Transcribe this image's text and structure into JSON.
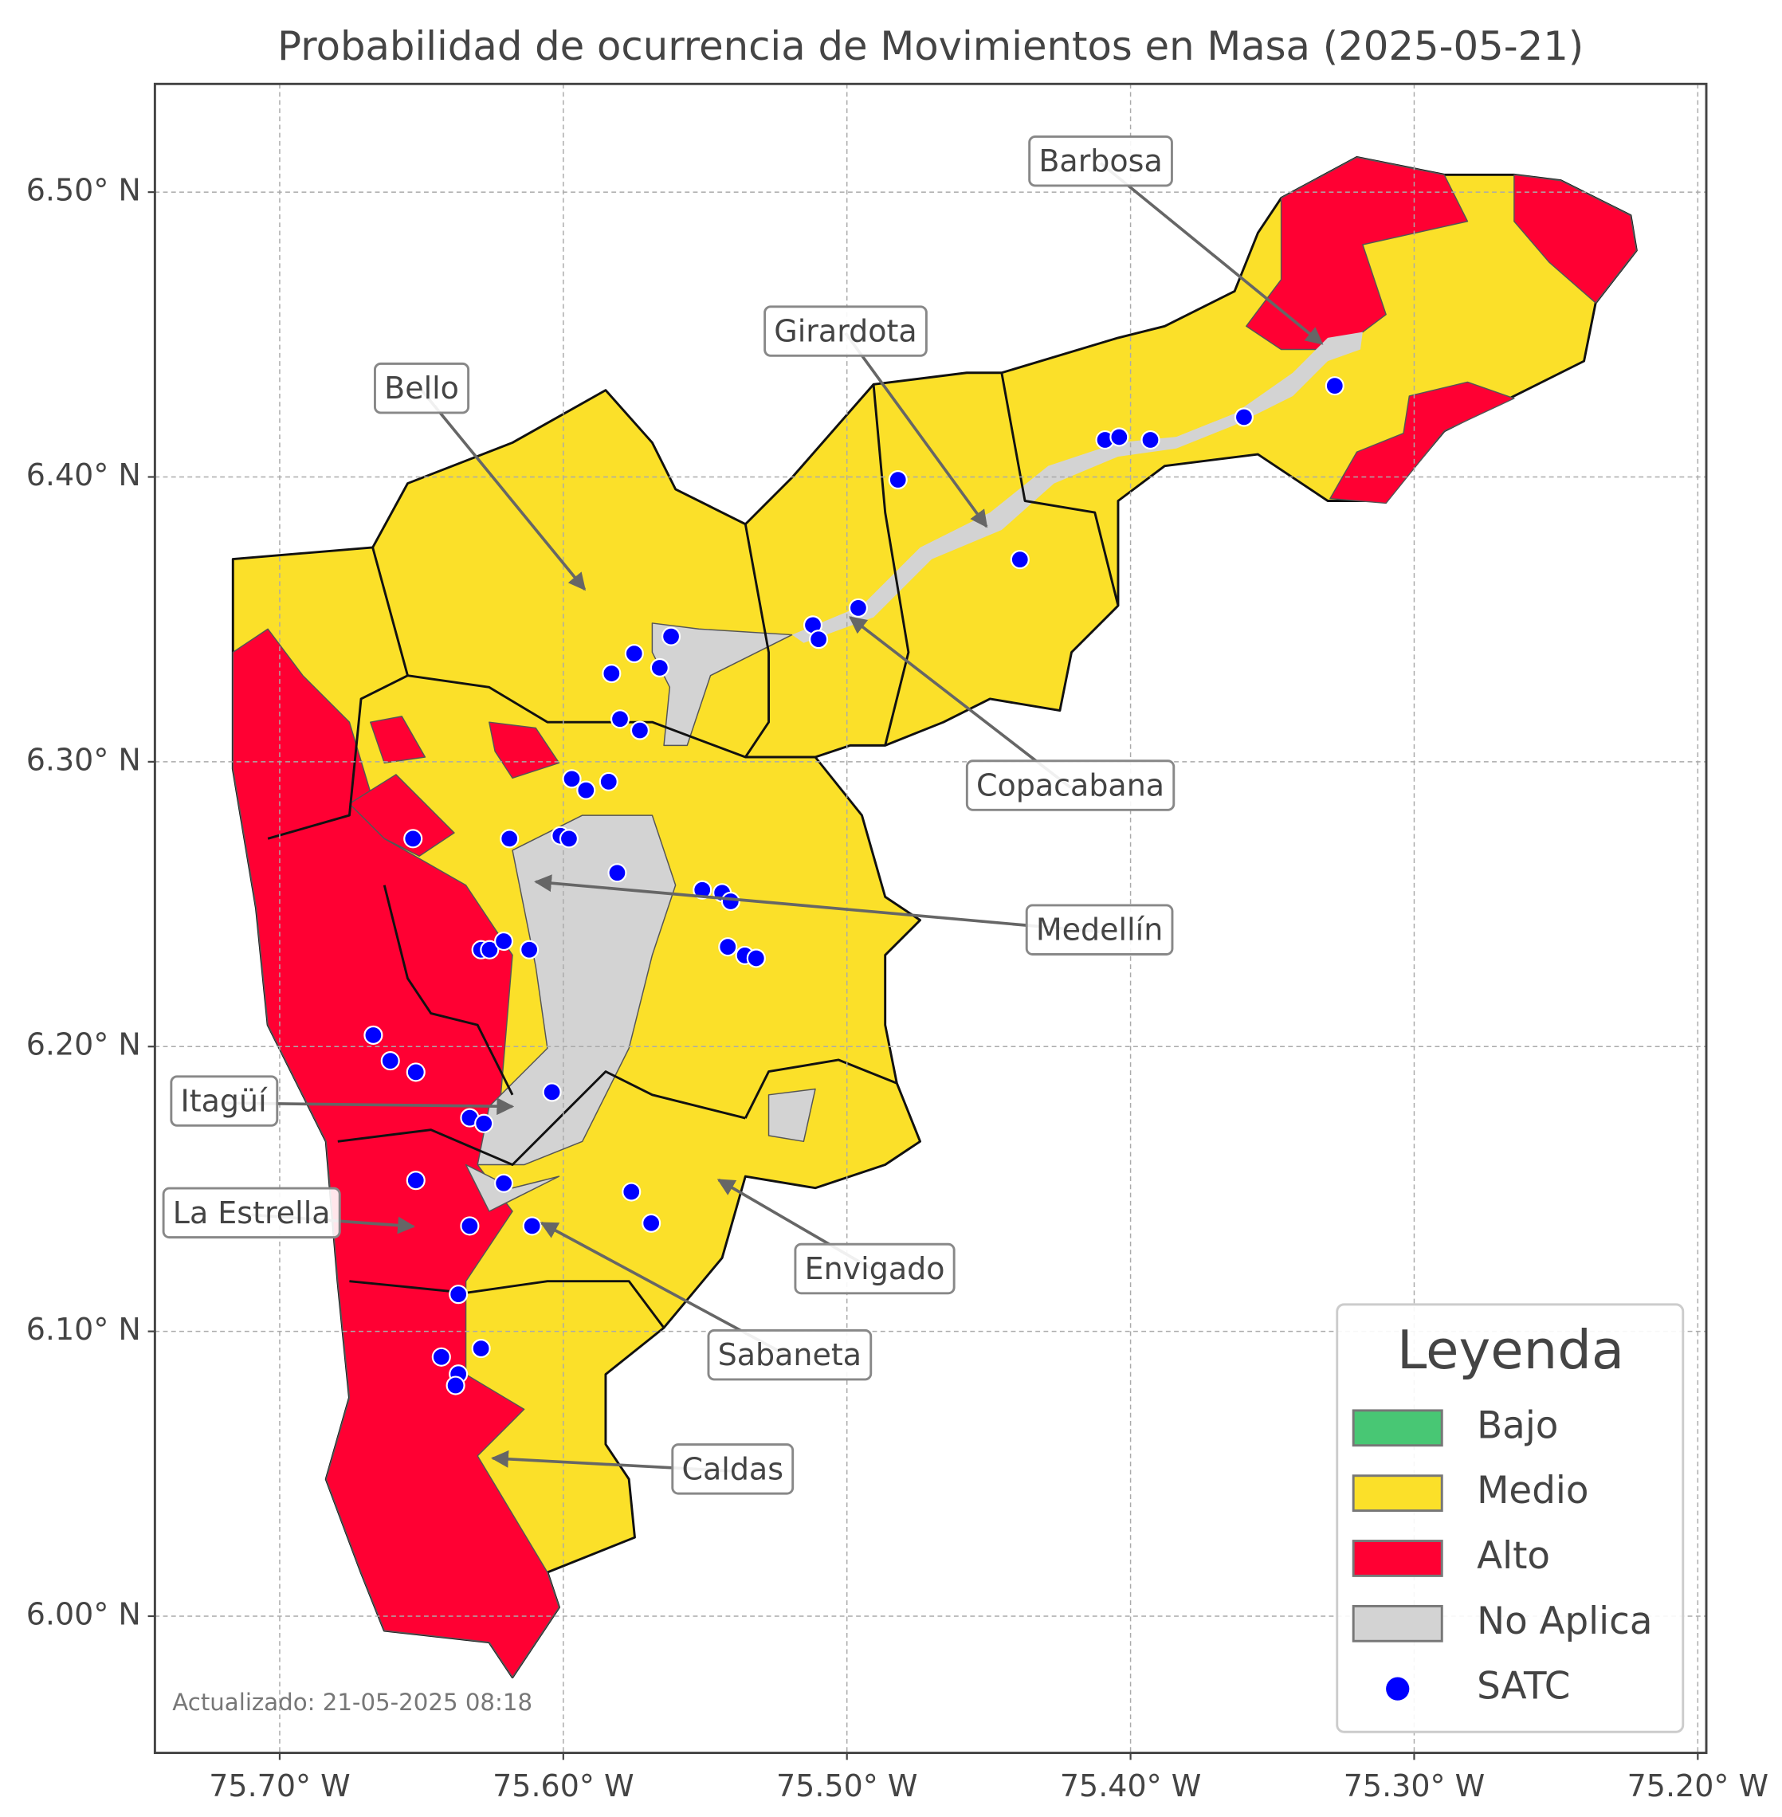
{
  "map": {
    "title": "Probabilidad de ocurrencia de Movimientos en Masa (2025-05-21)",
    "xlim": [
      -75.744,
      -75.197
    ],
    "ylim": [
      5.952,
      6.538
    ],
    "xticks": [
      {
        "value": -75.7,
        "label": "75.70° W"
      },
      {
        "value": -75.6,
        "label": "75.60° W"
      },
      {
        "value": -75.5,
        "label": "75.50° W"
      },
      {
        "value": -75.4,
        "label": "75.40° W"
      },
      {
        "value": -75.3,
        "label": "75.30° W"
      },
      {
        "value": -75.2,
        "label": "75.20° W"
      }
    ],
    "yticks": [
      {
        "value": 6.0,
        "label": "6.00° N"
      },
      {
        "value": 6.1,
        "label": "6.10° N"
      },
      {
        "value": 6.2,
        "label": "6.20° N"
      },
      {
        "value": 6.3,
        "label": "6.30° N"
      },
      {
        "value": 6.4,
        "label": "6.40° N"
      },
      {
        "value": 6.5,
        "label": "6.50° N"
      }
    ],
    "grid": true,
    "annotations": [
      "Barbosa",
      "Girardota",
      "Bello",
      "Copacabana",
      "Medellín",
      "Itagüí",
      "La Estrella",
      "Envigado",
      "Sabaneta",
      "Caldas"
    ],
    "legend": {
      "title": "Leyenda",
      "entries": [
        {
          "name": "Bajo",
          "color": "#48c774"
        },
        {
          "name": "Medio",
          "color": "#fbe029"
        },
        {
          "name": "Alto",
          "color": "#ff0033"
        },
        {
          "name": "No Aplica",
          "color": "#d3d3d3"
        },
        {
          "name": "SATC",
          "color": "#0000ff"
        }
      ]
    },
    "satc": {
      "color": "#0000ff",
      "lon": [
        -75.482,
        -75.409,
        -75.404,
        -75.393,
        -75.36,
        -75.328,
        -75.439,
        -75.496,
        -75.512,
        -75.51,
        -75.562,
        -75.575,
        -75.583,
        -75.566,
        -75.58,
        -75.573,
        -75.597,
        -75.592,
        -75.584,
        -75.653,
        -75.619,
        -75.601,
        -75.598,
        -75.581,
        -75.551,
        -75.544,
        -75.541,
        -75.542,
        -75.536,
        -75.532,
        -75.629,
        -75.626,
        -75.621,
        -75.612,
        -75.667,
        -75.661,
        -75.652,
        -75.604,
        -75.633,
        -75.628,
        -75.652,
        -75.621,
        -75.576,
        -75.569,
        -75.633,
        -75.611,
        -75.637,
        -75.643,
        -75.629,
        -75.637,
        -75.638
      ],
      "lat": [
        6.399,
        6.413,
        6.414,
        6.413,
        6.421,
        6.432,
        6.371,
        6.354,
        6.348,
        6.343,
        6.344,
        6.338,
        6.331,
        6.333,
        6.315,
        6.311,
        6.294,
        6.29,
        6.293,
        6.273,
        6.273,
        6.274,
        6.273,
        6.261,
        6.255,
        6.254,
        6.251,
        6.235,
        6.232,
        6.231,
        6.234,
        6.234,
        6.237,
        6.234,
        6.204,
        6.195,
        6.191,
        6.184,
        6.175,
        6.173,
        6.153,
        6.152,
        6.149,
        6.138,
        6.137,
        6.137,
        6.113,
        6.091,
        6.094,
        6.085,
        6.081
      ]
    },
    "updated_note": "Actualizado: 21-05-2025 08:18"
  }
}
